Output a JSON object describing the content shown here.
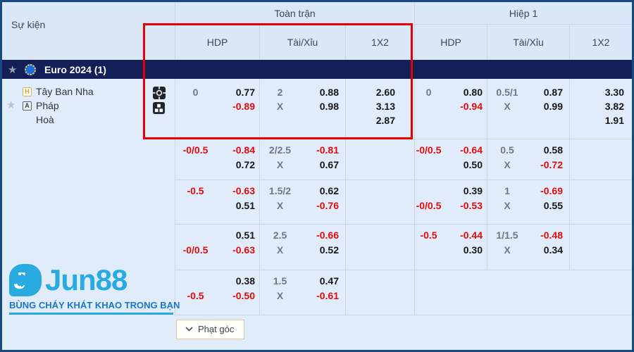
{
  "header": {
    "event_col": "Sự kiện",
    "full_time": "Toàn trận",
    "first_half": "Hiệp 1",
    "sub": {
      "hdp": "HDP",
      "ou": "Tài/Xỉu",
      "x12": "1X2"
    }
  },
  "league": {
    "name": "Euro 2024 (1)"
  },
  "match": {
    "home_badge": "H",
    "home": "Tây Ban Nha",
    "away_badge": "A",
    "away": "Pháp",
    "draw": "Hoà"
  },
  "odds_rows": [
    {
      "ft": {
        "hdp_line": [
          "0",
          ""
        ],
        "hdp_odds": [
          "0.77",
          "-0.89"
        ],
        "ou_line": [
          "2",
          "X"
        ],
        "ou_odds": [
          "0.88",
          "0.98"
        ],
        "x12": [
          "2.60",
          "3.13",
          "2.87"
        ]
      },
      "h1": {
        "hdp_line": [
          "0",
          ""
        ],
        "hdp_odds": [
          "0.80",
          "-0.94"
        ],
        "ou_line": [
          "0.5/1",
          "X"
        ],
        "ou_odds": [
          "0.87",
          "0.99"
        ],
        "x12": [
          "3.30",
          "3.82",
          "1.91"
        ]
      }
    },
    {
      "ft": {
        "hdp_line": [
          "-0/0.5",
          ""
        ],
        "hdp_odds": [
          "-0.84",
          "0.72"
        ],
        "ou_line": [
          "2/2.5",
          "X"
        ],
        "ou_odds": [
          "-0.81",
          "0.67"
        ],
        "x12": []
      },
      "h1": {
        "hdp_line": [
          "-0/0.5",
          ""
        ],
        "hdp_odds": [
          "-0.64",
          "0.50"
        ],
        "ou_line": [
          "0.5",
          "X"
        ],
        "ou_odds": [
          "0.58",
          "-0.72"
        ],
        "x12": []
      }
    },
    {
      "ft": {
        "hdp_line": [
          "-0.5",
          ""
        ],
        "hdp_odds": [
          "-0.63",
          "0.51"
        ],
        "ou_line": [
          "1.5/2",
          "X"
        ],
        "ou_odds": [
          "0.62",
          "-0.76"
        ],
        "x12": []
      },
      "h1": {
        "hdp_line": [
          "",
          "-0/0.5"
        ],
        "hdp_odds": [
          "0.39",
          "-0.53"
        ],
        "ou_line": [
          "1",
          "X"
        ],
        "ou_odds": [
          "-0.69",
          "0.55"
        ],
        "x12": []
      }
    },
    {
      "ft": {
        "hdp_line": [
          "",
          "-0/0.5"
        ],
        "hdp_odds": [
          "0.51",
          "-0.63"
        ],
        "ou_line": [
          "2.5",
          "X"
        ],
        "ou_odds": [
          "-0.66",
          "0.52"
        ],
        "x12": []
      },
      "h1": {
        "hdp_line": [
          "-0.5",
          ""
        ],
        "hdp_odds": [
          "-0.44",
          "0.30"
        ],
        "ou_line": [
          "1/1.5",
          "X"
        ],
        "ou_odds": [
          "-0.48",
          "0.34"
        ],
        "x12": []
      }
    },
    {
      "ft": {
        "hdp_line": [
          "",
          "-0.5"
        ],
        "hdp_odds": [
          "0.38",
          "-0.50"
        ],
        "ou_line": [
          "1.5",
          "X"
        ],
        "ou_odds": [
          "0.47",
          "-0.61"
        ],
        "x12": []
      },
      "h1": null
    }
  ],
  "footer": {
    "corner_button": "Phạt góc"
  },
  "brand": {
    "logo_letter": "J",
    "name": "Jun88",
    "tagline": "BÙNG CHÁY KHÁT KHAO TRONG BẠN"
  },
  "colors": {
    "odds_negative_red": "#e30b0b",
    "highlight_box_red": "#e60000",
    "league_row_navy": "#141f58",
    "brand_blue": "#29abe2",
    "tagline_blue": "#1878c8"
  }
}
